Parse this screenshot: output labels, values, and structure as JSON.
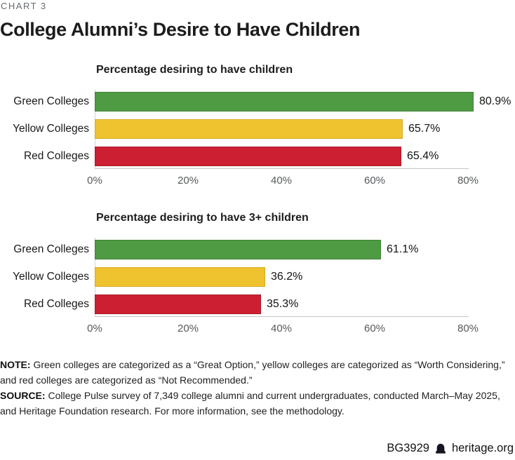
{
  "kicker": "CHART 3",
  "title": "College Alumni’s Desire to Have Children",
  "chart_data": [
    {
      "type": "bar",
      "orientation": "horizontal",
      "title": "Percentage desiring to have children",
      "categories": [
        "Green Colleges",
        "Yellow Colleges",
        "Red Colleges"
      ],
      "values": [
        80.9,
        65.7,
        65.4
      ],
      "value_labels": [
        "80.9%",
        "65.7%",
        "65.4%"
      ],
      "bar_colors": [
        "#4e9b44",
        "#efc32f",
        "#cc2032"
      ],
      "bar_border_colors": [
        "#3f8238",
        "#d8ab22",
        "#a81a29"
      ],
      "xlim": [
        0,
        80
      ],
      "x_ticks": [
        0,
        20,
        40,
        60,
        80
      ],
      "x_tick_labels": [
        "0%",
        "20%",
        "40%",
        "60%",
        "80%"
      ],
      "grid": false,
      "legend": "none"
    },
    {
      "type": "bar",
      "orientation": "horizontal",
      "title": "Percentage desiring to have 3+ children",
      "categories": [
        "Green Colleges",
        "Yellow Colleges",
        "Red Colleges"
      ],
      "values": [
        61.1,
        36.2,
        35.3
      ],
      "value_labels": [
        "61.1%",
        "36.2%",
        "35.3%"
      ],
      "bar_colors": [
        "#4e9b44",
        "#efc32f",
        "#cc2032"
      ],
      "bar_border_colors": [
        "#3f8238",
        "#d8ab22",
        "#a81a29"
      ],
      "xlim": [
        0,
        80
      ],
      "x_ticks": [
        0,
        20,
        40,
        60,
        80
      ],
      "x_tick_labels": [
        "0%",
        "20%",
        "40%",
        "60%",
        "80%"
      ],
      "grid": false,
      "legend": "none"
    }
  ],
  "note": {
    "label": "NOTE:",
    "line1": "Green colleges are categorized as a “Great Option,” yellow colleges are categorized as “Worth Considering,”",
    "line2": "and red colleges are categorized as “Not Recommended.”"
  },
  "source": {
    "label": "SOURCE:",
    "line1": "College Pulse survey of 7,349 college alumni and current undergraduates, conducted March–May 2025,",
    "line2": "and Heritage Foundation research. For more information, see the methodology."
  },
  "footer": {
    "report_id": "BG3929",
    "site": "heritage.org",
    "logo_icon": "heritage-bell-icon",
    "logo_color": "#15151f"
  }
}
